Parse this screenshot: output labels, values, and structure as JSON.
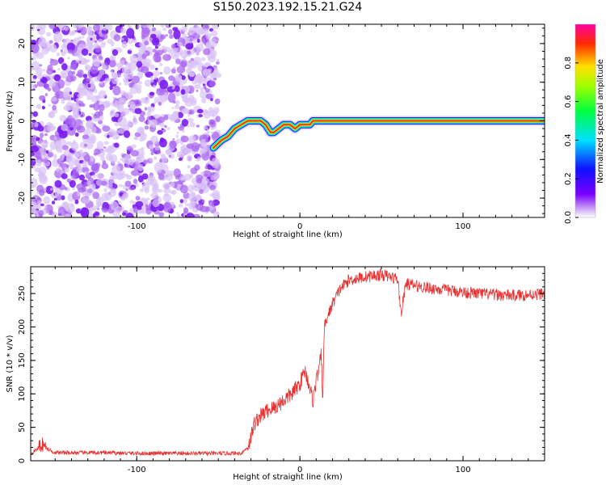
{
  "title": "S150.2023.192.15.21.G24",
  "chart_data": [
    {
      "type": "heatmap",
      "xlabel": "Height of straight line (km)",
      "ylabel": "Frequency (Hz)",
      "xlim": [
        -165,
        150
      ],
      "ylim": [
        -25,
        25
      ],
      "x_ticks": [
        "-100",
        "0",
        "100"
      ],
      "y_ticks": [
        "20",
        "10",
        "0",
        "-10",
        "-20"
      ],
      "colorbar": {
        "label": "Normalized spectral amplitude",
        "range": [
          0,
          1
        ],
        "ticks": [
          "0.0",
          "0.2",
          "0.4",
          "0.6",
          "0.8"
        ]
      },
      "noise_region_x": [
        -165,
        -50
      ],
      "signal_trace": {
        "x": [
          -53,
          -48,
          -44,
          -40,
          -36,
          -32,
          -28,
          -24,
          -21,
          -18,
          -16,
          -13,
          -10,
          -6,
          -3,
          0,
          3,
          6,
          8,
          10,
          105,
          115,
          125,
          135,
          150
        ],
        "y": [
          -7,
          -5,
          -4,
          -2,
          -1,
          0,
          0,
          0,
          -1,
          -3,
          -3,
          -2,
          -1,
          -1,
          -2,
          -1,
          -1,
          -1,
          0,
          0,
          0,
          0,
          0,
          0,
          0
        ]
      }
    },
    {
      "type": "line",
      "xlabel": "Height of straight line (km)",
      "ylabel": "SNR (10 * v/v)",
      "xlim": [
        -165,
        150
      ],
      "ylim": [
        0,
        290
      ],
      "x_ticks": [
        "-100",
        "0",
        "100"
      ],
      "y_ticks": [
        "0",
        "50",
        "100",
        "150",
        "200",
        "250"
      ],
      "color": "#e83030",
      "series": [
        {
          "x": [
            -165,
            -160,
            -158,
            -155,
            -150,
            -140,
            -120,
            -100,
            -80,
            -60,
            -50,
            -40,
            -36,
            -32,
            -30,
            -28,
            -25,
            -20,
            -15,
            -10,
            -5,
            0,
            3,
            5,
            8,
            10,
            12,
            13,
            14,
            15,
            17,
            20,
            25,
            30,
            40,
            50,
            55,
            60,
            62,
            65,
            70,
            80,
            90,
            100,
            110,
            120,
            130,
            140,
            150
          ],
          "y": [
            10,
            20,
            25,
            18,
            12,
            12,
            12,
            11,
            11,
            11,
            11,
            11,
            11,
            20,
            35,
            55,
            65,
            75,
            80,
            90,
            100,
            115,
            135,
            120,
            90,
            120,
            140,
            160,
            95,
            200,
            215,
            235,
            258,
            270,
            275,
            278,
            275,
            272,
            220,
            265,
            262,
            258,
            255,
            252,
            250,
            248,
            247,
            248,
            250
          ]
        }
      ]
    }
  ]
}
